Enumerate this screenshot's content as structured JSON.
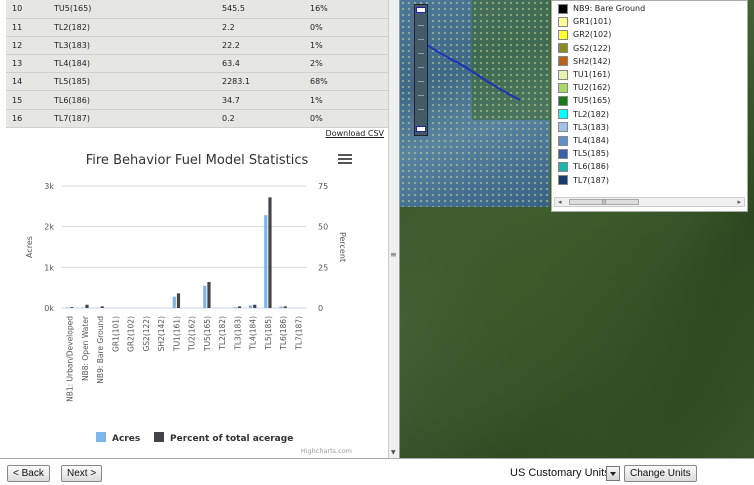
{
  "table": {
    "rows": [
      [
        "10",
        "TU5(165)",
        "545.5",
        "16%"
      ],
      [
        "11",
        "TL2(182)",
        "2.2",
        "0%"
      ],
      [
        "12",
        "TL3(183)",
        "22.2",
        "1%"
      ],
      [
        "13",
        "TL4(184)",
        "63.4",
        "2%"
      ],
      [
        "14",
        "TL5(185)",
        "2283.1",
        "68%"
      ],
      [
        "15",
        "TL6(186)",
        "34.7",
        "1%"
      ],
      [
        "16",
        "TL7(187)",
        "0.2",
        "0%"
      ]
    ],
    "download_label": "Download CSV"
  },
  "legend": {
    "items": [
      {
        "label": "NB9: Bare Ground",
        "color": "#000000"
      },
      {
        "label": "GR1(101)",
        "color": "#ffff99"
      },
      {
        "label": "GR2(102)",
        "color": "#ffff33"
      },
      {
        "label": "GS2(122)",
        "color": "#8b8b2a"
      },
      {
        "label": "SH2(142)",
        "color": "#b5651d"
      },
      {
        "label": "TU1(161)",
        "color": "#e5f5b0"
      },
      {
        "label": "TU2(162)",
        "color": "#a6d96a"
      },
      {
        "label": "TU5(165)",
        "color": "#1a7a1a"
      },
      {
        "label": "TL2(182)",
        "color": "#00ffff"
      },
      {
        "label": "TL3(183)",
        "color": "#9ec3e6"
      },
      {
        "label": "TL4(184)",
        "color": "#5f8fc4"
      },
      {
        "label": "TL5(185)",
        "color": "#3d5fa8"
      },
      {
        "label": "TL6(186)",
        "color": "#20b2aa"
      },
      {
        "label": "TL7(187)",
        "color": "#1a3a6e"
      }
    ],
    "scroll_thumb": "III"
  },
  "chart_data": {
    "type": "bar",
    "title": "Fire Behavior Fuel Model Statistics",
    "categories": [
      "NB1: Urban/Developed",
      "NB8: Open Water",
      "NB9: Bare Ground",
      "GR1(101)",
      "GR2(102)",
      "GS2(122)",
      "SH2(142)",
      "TU1(161)",
      "TU2(162)",
      "TU5(165)",
      "TL2(182)",
      "TL3(183)",
      "TL4(184)",
      "TL5(185)",
      "TL6(186)",
      "TL7(187)"
    ],
    "series": [
      {
        "name": "Acres",
        "color": "#7cb5ec",
        "axis": "left",
        "values": [
          15,
          12,
          8,
          0,
          0,
          0,
          0,
          280,
          0,
          545.5,
          2.2,
          22.2,
          63.4,
          2283.1,
          34.7,
          0.2
        ]
      },
      {
        "name": "Percent of total acerage",
        "color": "#434348",
        "axis": "right",
        "values": [
          0.5,
          2,
          1,
          0,
          0,
          0,
          0,
          9,
          0,
          16,
          0,
          1,
          2,
          68,
          1,
          0
        ]
      }
    ],
    "y_left": {
      "label": "Acres",
      "min": 0,
      "max": 3000,
      "ticks": [
        "0k",
        "1k",
        "2k",
        "3k"
      ]
    },
    "y_right": {
      "label": "Percent",
      "min": 0,
      "max": 75,
      "ticks": [
        "0",
        "25",
        "50",
        "75"
      ]
    },
    "credit": "Highcharts.com",
    "legend_position": "bottom"
  },
  "footer": {
    "back_label": "< Back",
    "next_label": "Next >",
    "units_value": "US Customary Units",
    "change_units_label": "Change Units"
  }
}
